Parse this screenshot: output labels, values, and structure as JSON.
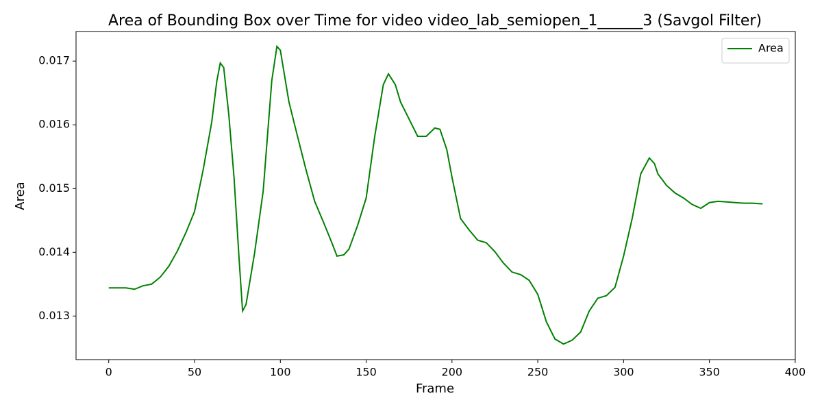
{
  "chart_data": {
    "type": "line",
    "title": "Area of Bounding Box over Time for video video_lab_semiopen_1______3 (Savgol Filter)",
    "xlabel": "Frame",
    "ylabel": "Area",
    "x": [
      0,
      5,
      10,
      15,
      20,
      25,
      30,
      35,
      40,
      45,
      50,
      55,
      60,
      63,
      65,
      67,
      70,
      73,
      76,
      78,
      80,
      85,
      90,
      95,
      98,
      100,
      105,
      110,
      115,
      120,
      125,
      130,
      133,
      137,
      140,
      145,
      150,
      155,
      160,
      163,
      167,
      170,
      175,
      180,
      185,
      190,
      193,
      197,
      200,
      205,
      210,
      215,
      220,
      225,
      230,
      235,
      240,
      245,
      250,
      255,
      260,
      265,
      270,
      275,
      280,
      285,
      290,
      295,
      300,
      305,
      310,
      315,
      318,
      320,
      325,
      330,
      335,
      340,
      345,
      350,
      355,
      360,
      365,
      370,
      375,
      381
    ],
    "series": [
      {
        "name": "Area",
        "color": "#008000",
        "values": [
          0.013442,
          0.013442,
          0.013442,
          0.01342,
          0.013475,
          0.0135,
          0.01361,
          0.01378,
          0.01402,
          0.01431,
          0.01464,
          0.01529,
          0.01604,
          0.01669,
          0.01697,
          0.0169,
          0.01615,
          0.01518,
          0.01388,
          0.01308,
          0.01318,
          0.01399,
          0.01496,
          0.01669,
          0.01723,
          0.01717,
          0.01636,
          0.01582,
          0.01529,
          0.0148,
          0.01448,
          0.01415,
          0.01394,
          0.01396,
          0.01405,
          0.01442,
          0.01485,
          0.01582,
          0.01663,
          0.0168,
          0.01663,
          0.01636,
          0.01609,
          0.01582,
          0.01582,
          0.01595,
          0.01593,
          0.01561,
          0.01518,
          0.01453,
          0.01435,
          0.01419,
          0.01415,
          0.01401,
          0.01383,
          0.01369,
          0.01365,
          0.01356,
          0.01334,
          0.01291,
          0.01264,
          0.01256,
          0.01262,
          0.01275,
          0.01308,
          0.01328,
          0.01332,
          0.01345,
          0.01394,
          0.01453,
          0.01523,
          0.01548,
          0.01539,
          0.01523,
          0.01505,
          0.01493,
          0.01485,
          0.01475,
          0.01469,
          0.01478,
          0.0148,
          0.01479,
          0.01478,
          0.01477,
          0.01477,
          0.01476
        ]
      }
    ],
    "xlim": [
      -19.05,
      400.05
    ],
    "xticks": [
      0,
      50,
      100,
      150,
      200,
      250,
      300,
      350,
      400
    ],
    "ylim": [
      0.012316,
      0.017464
    ],
    "yticks": [
      0.013,
      0.014,
      0.015,
      0.016,
      0.017
    ],
    "grid": false,
    "legend": "upper right"
  }
}
